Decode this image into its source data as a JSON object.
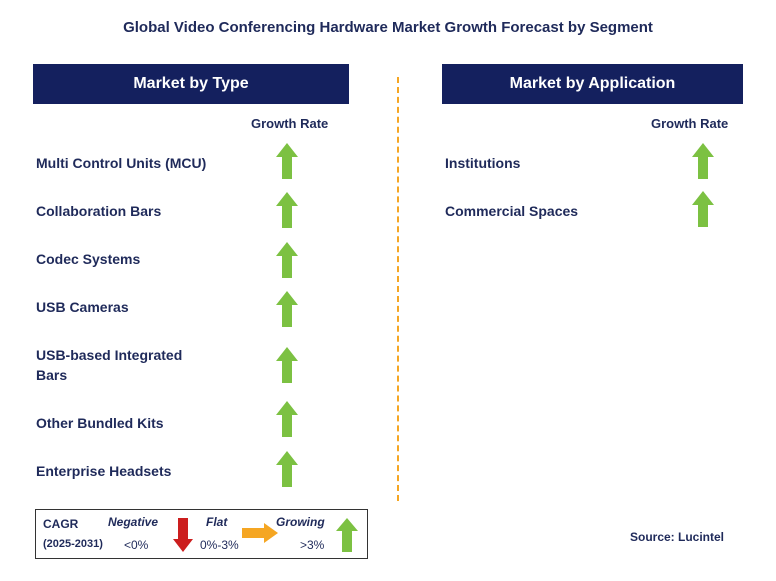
{
  "title": "Global Video Conferencing Hardware Market Growth Forecast by Segment",
  "left_panel": {
    "header": "Market by Type",
    "growth_rate_label": "Growth Rate",
    "items": [
      {
        "label": "Multi Control Units (MCU)",
        "trend": "growing"
      },
      {
        "label": "Collaboration Bars",
        "trend": "growing"
      },
      {
        "label": "Codec Systems",
        "trend": "growing"
      },
      {
        "label": "USB Cameras",
        "trend": "growing"
      },
      {
        "label": "USB-based Integrated Bars",
        "trend": "growing"
      },
      {
        "label": "Other Bundled Kits",
        "trend": "growing"
      },
      {
        "label": "Enterprise Headsets",
        "trend": "growing"
      }
    ]
  },
  "right_panel": {
    "header": "Market by Application",
    "growth_rate_label": "Growth Rate",
    "items": [
      {
        "label": "Institutions",
        "trend": "growing"
      },
      {
        "label": "Commercial Spaces",
        "trend": "growing"
      }
    ]
  },
  "legend": {
    "cagr": "CAGR",
    "period": "(2025-2031)",
    "negative_label": "Negative",
    "negative_range": "<0%",
    "flat_label": "Flat",
    "flat_range": "0%-3%",
    "growing_label": "Growing",
    "growing_range": ">3%"
  },
  "source": "Source: Lucintel",
  "colors": {
    "header_bg": "#14205e",
    "text": "#1f2a5a",
    "growing_arrow": "#7cc142",
    "negative_arrow": "#cc1e1e",
    "flat_arrow": "#f5a623",
    "divider": "#f5a623"
  }
}
